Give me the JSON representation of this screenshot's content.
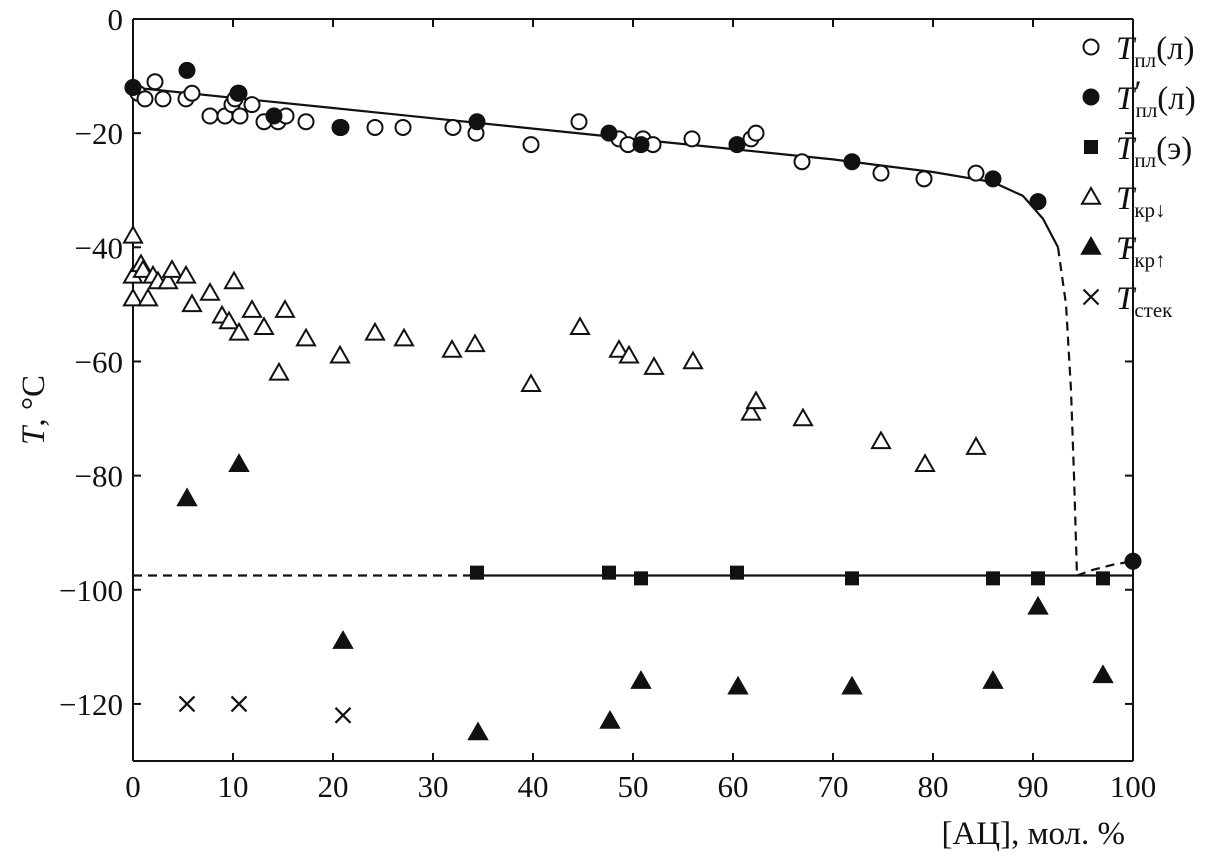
{
  "chart_data": {
    "type": "scatter",
    "xlabel": "[АЦ], мол. %",
    "ylabel": "T, °C",
    "xlim": [
      0,
      100
    ],
    "ylim": [
      -130,
      0
    ],
    "x_ticks": [
      0,
      10,
      20,
      30,
      40,
      50,
      60,
      70,
      80,
      90,
      100
    ],
    "y_ticks": [
      0,
      -20,
      -40,
      -60,
      -80,
      -100,
      -120
    ],
    "y_tick_labels": [
      "0",
      "−20",
      "−40",
      "−60",
      "−80",
      "−100",
      "−120"
    ],
    "grid": false,
    "legend_position": "top-right",
    "series": [
      {
        "name": "Tпл(л)",
        "legend": {
          "main": "T",
          "prime": "",
          "sub": "пл",
          "suffix": "(л)"
        },
        "marker": "circle-open",
        "x": [
          0,
          0.5,
          1.2,
          2.2,
          3.0,
          5.3,
          5.9,
          7.7,
          9.2,
          9.9,
          10.2,
          10.5,
          10.7,
          11.9,
          13.1,
          14.5,
          15.3,
          17.3,
          20.7,
          24.2,
          27.0,
          32.0,
          34.3,
          39.8,
          44.6,
          48.6,
          49.5,
          51.0,
          52.0,
          55.9,
          61.8,
          62.3,
          66.9,
          74.8,
          79.1,
          84.3
        ],
        "y": [
          -12,
          -13,
          -14,
          -11,
          -14,
          -14,
          -13,
          -17,
          -17,
          -15,
          -14,
          -13,
          -17,
          -15,
          -18,
          -18,
          -17,
          -18,
          -19,
          -19,
          -19,
          -19,
          -20,
          -22,
          -18,
          -21,
          -22,
          -21,
          -22,
          -21,
          -21,
          -20,
          -25,
          -27,
          -28,
          -27
        ]
      },
      {
        "name": "T′пл(л)",
        "legend": {
          "main": "T",
          "prime": "′",
          "sub": "пл",
          "suffix": "(л)"
        },
        "marker": "circle-filled",
        "x": [
          0,
          5.4,
          10.6,
          14.1,
          20.8,
          34.4,
          47.6,
          50.8,
          60.4,
          71.9,
          86.0,
          90.5,
          100
        ],
        "y": [
          -12,
          -9,
          -13,
          -17,
          -19,
          -18,
          -20,
          -22,
          -22,
          -25,
          -28,
          -32,
          -95
        ]
      },
      {
        "name": "Tпл(э)",
        "legend": {
          "main": "T",
          "prime": "",
          "sub": "пл",
          "suffix": "(э)"
        },
        "marker": "square-filled",
        "x": [
          34.4,
          47.6,
          50.8,
          60.4,
          71.9,
          86.0,
          90.5,
          97.0
        ],
        "y": [
          -97,
          -97,
          -98,
          -97,
          -98,
          -98,
          -98,
          -98
        ]
      },
      {
        "name": "Tкр↓",
        "legend": {
          "main": "T",
          "prime": "",
          "sub": "кр↓",
          "suffix": ""
        },
        "marker": "triangle-open",
        "x": [
          0,
          0,
          0,
          0.8,
          1.0,
          1.5,
          2.0,
          2.5,
          3.5,
          3.9,
          5.3,
          5.9,
          7.7,
          8.9,
          9.6,
          10.1,
          10.6,
          11.9,
          13.1,
          14.6,
          15.2,
          17.3,
          20.7,
          24.2,
          27.1,
          31.9,
          34.2,
          39.8,
          44.7,
          48.6,
          49.6,
          52.1,
          56.0,
          61.8,
          62.3,
          67.0,
          74.8,
          79.2,
          84.3
        ],
        "y": [
          -38,
          -45,
          -49,
          -43,
          -44,
          -49,
          -45,
          -46,
          -46,
          -44,
          -45,
          -50,
          -48,
          -52,
          -53,
          -46,
          -55,
          -51,
          -54,
          -62,
          -51,
          -56,
          -59,
          -55,
          -56,
          -58,
          -57,
          -64,
          -54,
          -58,
          -59,
          -61,
          -60,
          -69,
          -67,
          -70,
          -74,
          -78,
          -75
        ]
      },
      {
        "name": "Tкр↑",
        "legend": {
          "main": "T",
          "prime": "",
          "sub": "кр↑",
          "suffix": ""
        },
        "marker": "triangle-filled",
        "x": [
          5.4,
          10.6,
          21.0,
          34.5,
          47.7,
          50.8,
          60.5,
          71.9,
          86.0,
          90.5,
          97.0
        ],
        "y": [
          -84,
          -78,
          -109,
          -125,
          -123,
          -116,
          -117,
          -117,
          -116,
          -103,
          -115
        ]
      },
      {
        "name": "Tстек",
        "legend": {
          "main": "T",
          "prime": "",
          "sub": "стек",
          "suffix": ""
        },
        "marker": "cross",
        "x": [
          5.4,
          10.6,
          21.0
        ],
        "y": [
          -120,
          -120,
          -122
        ]
      }
    ],
    "curves": [
      {
        "kind": "liquidus-solid",
        "style": "solid",
        "x": [
          0,
          10,
          20,
          30,
          40,
          50,
          60,
          70,
          80,
          86,
          89,
          91,
          92.5
        ],
        "y": [
          -12,
          -13.8,
          -15.6,
          -17.4,
          -19.2,
          -21.0,
          -22.8,
          -24.6,
          -26.8,
          -28.6,
          -31,
          -35,
          -40
        ]
      },
      {
        "kind": "liquidus-dashed",
        "style": "dashed",
        "x": [
          92.5,
          93.3,
          93.8,
          94.1,
          94.4
        ],
        "y": [
          -40,
          -50,
          -65,
          -80,
          -97.5
        ]
      },
      {
        "kind": "eutectic-dashed",
        "style": "dashed",
        "x": [
          0,
          34.4
        ],
        "y": [
          -97.5,
          -97.5
        ]
      },
      {
        "kind": "eutectic-solid",
        "style": "solid",
        "x": [
          34.4,
          100
        ],
        "y": [
          -97.5,
          -97.5
        ]
      },
      {
        "kind": "right-branch-dashed",
        "style": "dashed",
        "x": [
          94.4,
          96,
          98,
          100
        ],
        "y": [
          -97.5,
          -96.5,
          -95.6,
          -95
        ]
      }
    ]
  }
}
